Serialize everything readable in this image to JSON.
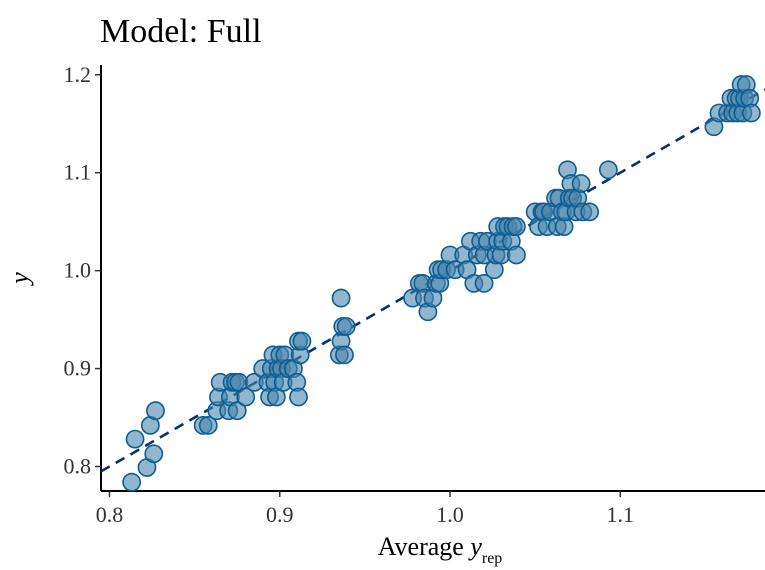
{
  "chart_data": {
    "type": "scatter",
    "title": "Model: Full",
    "xlabel": {
      "main": "Average ",
      "var": "y",
      "sub": "rep"
    },
    "ylabel": "y",
    "xlim": [
      0.795,
      1.185
    ],
    "ylim": [
      0.775,
      1.21
    ],
    "xticks": [
      0.8,
      0.9,
      1.0,
      1.1
    ],
    "xtick_labels": [
      "0.8",
      "0.9",
      "1.0",
      "1.1"
    ],
    "yticks": [
      0.8,
      0.9,
      1.0,
      1.1,
      1.2
    ],
    "ytick_labels": [
      "0.8",
      "0.9",
      "1.0",
      "1.1",
      "1.2"
    ],
    "grid": false,
    "reference_line": {
      "slope": 1,
      "intercept": 0,
      "style": "dashed",
      "color": "#08306b"
    },
    "point_fill": "#4a86ad",
    "point_stroke": "#0f5e91",
    "points": [
      [
        0.813,
        0.784
      ],
      [
        0.815,
        0.828
      ],
      [
        0.822,
        0.799
      ],
      [
        0.824,
        0.842
      ],
      [
        0.826,
        0.813
      ],
      [
        0.827,
        0.857
      ],
      [
        0.855,
        0.842
      ],
      [
        0.858,
        0.842
      ],
      [
        0.863,
        0.857
      ],
      [
        0.864,
        0.871
      ],
      [
        0.865,
        0.886
      ],
      [
        0.87,
        0.857
      ],
      [
        0.871,
        0.871
      ],
      [
        0.872,
        0.886
      ],
      [
        0.874,
        0.886
      ],
      [
        0.875,
        0.857
      ],
      [
        0.876,
        0.886
      ],
      [
        0.88,
        0.871
      ],
      [
        0.885,
        0.886
      ],
      [
        0.89,
        0.9
      ],
      [
        0.893,
        0.886
      ],
      [
        0.894,
        0.871
      ],
      [
        0.895,
        0.9
      ],
      [
        0.896,
        0.914
      ],
      [
        0.897,
        0.886
      ],
      [
        0.898,
        0.871
      ],
      [
        0.899,
        0.9
      ],
      [
        0.9,
        0.914
      ],
      [
        0.901,
        0.9
      ],
      [
        0.902,
        0.886
      ],
      [
        0.903,
        0.914
      ],
      [
        0.905,
        0.9
      ],
      [
        0.908,
        0.9
      ],
      [
        0.91,
        0.886
      ],
      [
        0.911,
        0.871
      ],
      [
        0.912,
        0.914
      ],
      [
        0.911,
        0.928
      ],
      [
        0.913,
        0.928
      ],
      [
        0.935,
        0.914
      ],
      [
        0.936,
        0.928
      ],
      [
        0.937,
        0.943
      ],
      [
        0.936,
        0.972
      ],
      [
        0.938,
        0.914
      ],
      [
        0.939,
        0.943
      ],
      [
        0.978,
        0.972
      ],
      [
        0.982,
        0.987
      ],
      [
        0.984,
        0.987
      ],
      [
        0.985,
        0.972
      ],
      [
        0.987,
        0.958
      ],
      [
        0.99,
        0.972
      ],
      [
        0.992,
        0.987
      ],
      [
        0.993,
        1.001
      ],
      [
        0.994,
        0.987
      ],
      [
        0.995,
        1.001
      ],
      [
        0.998,
        1.001
      ],
      [
        1.0,
        1.016
      ],
      [
        1.003,
        1.001
      ],
      [
        1.008,
        1.016
      ],
      [
        1.01,
        1.001
      ],
      [
        1.012,
        1.03
      ],
      [
        1.014,
        0.987
      ],
      [
        1.016,
        1.016
      ],
      [
        1.018,
        1.03
      ],
      [
        1.02,
        0.987
      ],
      [
        1.02,
        1.016
      ],
      [
        1.022,
        1.03
      ],
      [
        1.026,
        1.001
      ],
      [
        1.027,
        1.016
      ],
      [
        1.028,
        1.03
      ],
      [
        1.028,
        1.045
      ],
      [
        1.03,
        1.016
      ],
      [
        1.031,
        1.03
      ],
      [
        1.032,
        1.045
      ],
      [
        1.034,
        1.045
      ],
      [
        1.036,
        1.03
      ],
      [
        1.037,
        1.045
      ],
      [
        1.039,
        1.045
      ],
      [
        1.039,
        1.016
      ],
      [
        1.05,
        1.06
      ],
      [
        1.052,
        1.045
      ],
      [
        1.054,
        1.06
      ],
      [
        1.055,
        1.06
      ],
      [
        1.057,
        1.045
      ],
      [
        1.059,
        1.06
      ],
      [
        1.062,
        1.074
      ],
      [
        1.063,
        1.045
      ],
      [
        1.064,
        1.074
      ],
      [
        1.066,
        1.06
      ],
      [
        1.067,
        1.045
      ],
      [
        1.068,
        1.06
      ],
      [
        1.069,
        1.103
      ],
      [
        1.07,
        1.074
      ],
      [
        1.071,
        1.089
      ],
      [
        1.072,
        1.074
      ],
      [
        1.074,
        1.06
      ],
      [
        1.075,
        1.074
      ],
      [
        1.077,
        1.089
      ],
      [
        1.078,
        1.06
      ],
      [
        1.082,
        1.06
      ],
      [
        1.093,
        1.103
      ],
      [
        1.155,
        1.147
      ],
      [
        1.158,
        1.161
      ],
      [
        1.163,
        1.161
      ],
      [
        1.165,
        1.176
      ],
      [
        1.166,
        1.161
      ],
      [
        1.168,
        1.176
      ],
      [
        1.169,
        1.161
      ],
      [
        1.17,
        1.176
      ],
      [
        1.171,
        1.19
      ],
      [
        1.172,
        1.161
      ],
      [
        1.173,
        1.176
      ],
      [
        1.174,
        1.19
      ],
      [
        1.176,
        1.176
      ],
      [
        1.177,
        1.161
      ]
    ]
  }
}
